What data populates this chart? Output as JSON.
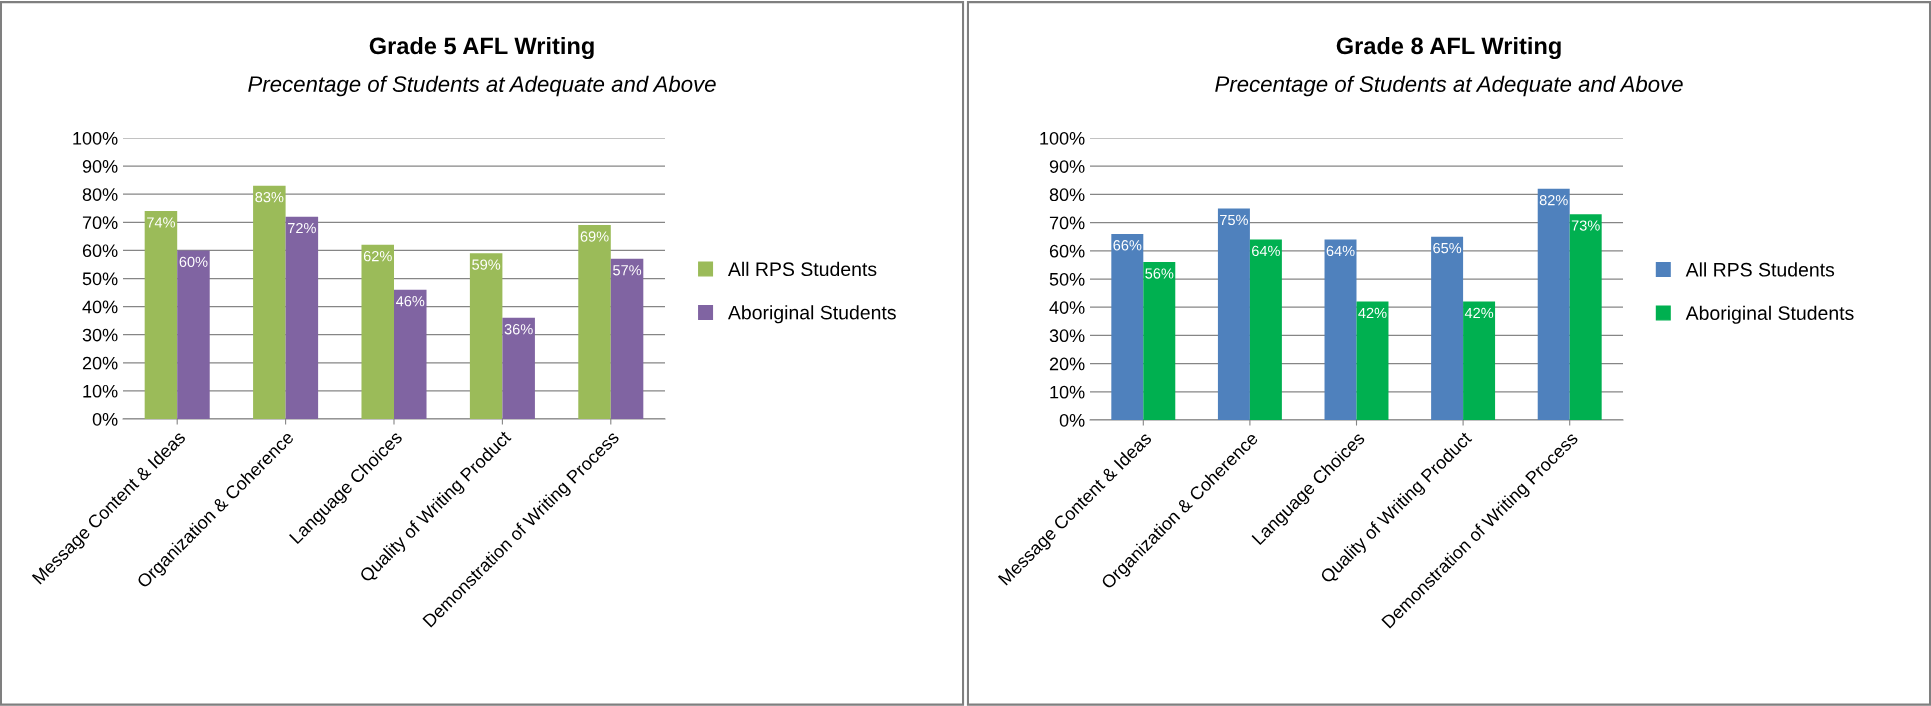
{
  "chart_data": [
    {
      "type": "bar",
      "title": "Grade 5 AFL Writing",
      "subtitle": "Precentage of Students at Adequate and Above",
      "categories": [
        "Message Content & Ideas",
        "Organization & Coherence",
        "Language Choices",
        "Quality of Writing Product",
        "Demonstration of Writing Process"
      ],
      "series": [
        {
          "name": "All RPS Students",
          "color": "#9bbb59",
          "values": [
            74,
            83,
            62,
            59,
            69
          ],
          "value_labels": [
            "74%",
            "83%",
            "62%",
            "59%",
            "69%"
          ]
        },
        {
          "name": "Aboriginal Students",
          "color": "#8064a2",
          "values": [
            60,
            72,
            46,
            36,
            57
          ],
          "value_labels": [
            "60%",
            "72%",
            "46%",
            "36%",
            "57%"
          ]
        }
      ],
      "ylim": [
        0,
        100
      ],
      "yticks": [
        {
          "value": 0,
          "label": "0%"
        },
        {
          "value": 10,
          "label": "10%"
        },
        {
          "value": 20,
          "label": "20%"
        },
        {
          "value": 30,
          "label": "30%"
        },
        {
          "value": 40,
          "label": "40%"
        },
        {
          "value": 50,
          "label": "50%"
        },
        {
          "value": 60,
          "label": "60%"
        },
        {
          "value": 70,
          "label": "70%"
        },
        {
          "value": 80,
          "label": "80%"
        },
        {
          "value": 90,
          "label": "90%"
        },
        {
          "value": 100,
          "label": "100%"
        }
      ],
      "grid": "y",
      "legend": "right"
    },
    {
      "type": "bar",
      "title": "Grade 8 AFL Writing",
      "subtitle": "Precentage of Students at Adequate and Above",
      "categories": [
        "Message Content & Ideas",
        "Organization & Coherence",
        "Language Choices",
        "Quality of Writing Product",
        "Demonstration of Writing Process"
      ],
      "series": [
        {
          "name": "All RPS Students",
          "color": "#4f81bd",
          "values": [
            66,
            75,
            64,
            65,
            82
          ],
          "value_labels": [
            "66%",
            "75%",
            "64%",
            "65%",
            "82%"
          ]
        },
        {
          "name": "Aboriginal Students",
          "color": "#00b050",
          "values": [
            56,
            64,
            42,
            42,
            73
          ],
          "value_labels": [
            "56%",
            "64%",
            "42%",
            "42%",
            "73%"
          ]
        }
      ],
      "ylim": [
        0,
        100
      ],
      "yticks": [
        {
          "value": 0,
          "label": "0%"
        },
        {
          "value": 10,
          "label": "10%"
        },
        {
          "value": 20,
          "label": "20%"
        },
        {
          "value": 30,
          "label": "30%"
        },
        {
          "value": 40,
          "label": "40%"
        },
        {
          "value": 50,
          "label": "50%"
        },
        {
          "value": 60,
          "label": "60%"
        },
        {
          "value": 70,
          "label": "70%"
        },
        {
          "value": 80,
          "label": "80%"
        },
        {
          "value": 90,
          "label": "90%"
        },
        {
          "value": 100,
          "label": "100%"
        }
      ],
      "grid": "y",
      "legend": "right"
    }
  ]
}
